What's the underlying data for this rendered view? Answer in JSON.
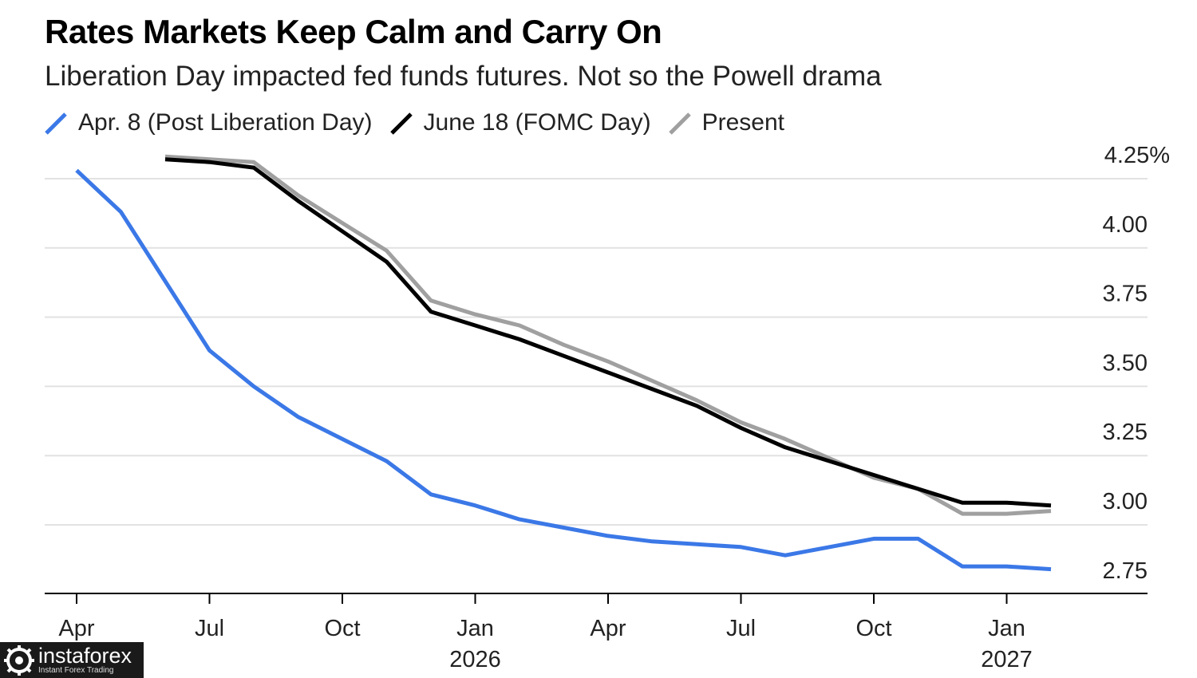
{
  "title": "Rates Markets Keep Calm and Carry On",
  "subtitle": "Liberation Day impacted fed funds futures. Not so the Powell drama",
  "watermark": {
    "name": "instaforex",
    "tagline": "Instant Forex Trading"
  },
  "colors": {
    "apr8": "#3b78e7",
    "june18": "#000000",
    "present": "#a0a0a0",
    "grid": "#e2e2e2",
    "axis": "#000000"
  },
  "chart_data": {
    "type": "line",
    "title": "Rates Markets Keep Calm and Carry On",
    "subtitle": "Liberation Day impacted fed funds futures. Not so the Powell drama",
    "legend_position": "top-left",
    "grid": true,
    "y_unit": "%",
    "ylim": [
      2.75,
      4.25
    ],
    "y_ticks": [
      {
        "value": 4.25,
        "label": "4.25%"
      },
      {
        "value": 4.0,
        "label": "4.00"
      },
      {
        "value": 3.75,
        "label": "3.75"
      },
      {
        "value": 3.5,
        "label": "3.50"
      },
      {
        "value": 3.25,
        "label": "3.25"
      },
      {
        "value": 3.0,
        "label": "3.00"
      },
      {
        "value": 2.75,
        "label": "2.75"
      }
    ],
    "x_ticks": [
      {
        "date": "2025-04",
        "label": "Apr",
        "year": ""
      },
      {
        "date": "2025-07",
        "label": "Jul",
        "year": ""
      },
      {
        "date": "2025-10",
        "label": "Oct",
        "year": ""
      },
      {
        "date": "2026-01",
        "label": "Jan",
        "year": "2026"
      },
      {
        "date": "2026-04",
        "label": "Apr",
        "year": ""
      },
      {
        "date": "2026-07",
        "label": "Jul",
        "year": ""
      },
      {
        "date": "2026-10",
        "label": "Oct",
        "year": ""
      },
      {
        "date": "2027-01",
        "label": "Jan",
        "year": "2027"
      }
    ],
    "series": [
      {
        "name": "Apr. 8 (Post Liberation Day)",
        "color_key": "apr8",
        "points": [
          [
            "2025-04",
            4.28
          ],
          [
            "2025-05",
            4.13
          ],
          [
            "2025-06",
            3.88
          ],
          [
            "2025-07",
            3.63
          ],
          [
            "2025-08",
            3.5
          ],
          [
            "2025-09",
            3.39
          ],
          [
            "2025-10",
            3.31
          ],
          [
            "2025-11",
            3.23
          ],
          [
            "2025-12",
            3.11
          ],
          [
            "2026-01",
            3.07
          ],
          [
            "2026-02",
            3.02
          ],
          [
            "2026-03",
            2.99
          ],
          [
            "2026-04",
            2.96
          ],
          [
            "2026-05",
            2.94
          ],
          [
            "2026-06",
            2.93
          ],
          [
            "2026-07",
            2.92
          ],
          [
            "2026-08",
            2.89
          ],
          [
            "2026-09",
            2.92
          ],
          [
            "2026-10",
            2.95
          ],
          [
            "2026-11",
            2.95
          ],
          [
            "2026-12",
            2.85
          ],
          [
            "2027-01",
            2.85
          ],
          [
            "2027-02",
            2.84
          ]
        ]
      },
      {
        "name": "June 18 (FOMC Day)",
        "color_key": "june18",
        "points": [
          [
            "2025-06",
            4.32
          ],
          [
            "2025-07",
            4.31
          ],
          [
            "2025-08",
            4.29
          ],
          [
            "2025-09",
            4.17
          ],
          [
            "2025-10",
            4.06
          ],
          [
            "2025-11",
            3.95
          ],
          [
            "2025-12",
            3.77
          ],
          [
            "2026-01",
            3.72
          ],
          [
            "2026-02",
            3.67
          ],
          [
            "2026-03",
            3.61
          ],
          [
            "2026-04",
            3.55
          ],
          [
            "2026-05",
            3.49
          ],
          [
            "2026-06",
            3.43
          ],
          [
            "2026-07",
            3.35
          ],
          [
            "2026-08",
            3.28
          ],
          [
            "2026-09",
            3.23
          ],
          [
            "2026-10",
            3.18
          ],
          [
            "2026-11",
            3.13
          ],
          [
            "2026-12",
            3.08
          ],
          [
            "2027-01",
            3.08
          ],
          [
            "2027-02",
            3.07
          ]
        ]
      },
      {
        "name": "Present",
        "color_key": "present",
        "points": [
          [
            "2025-06",
            4.33
          ],
          [
            "2025-07",
            4.32
          ],
          [
            "2025-08",
            4.31
          ],
          [
            "2025-09",
            4.19
          ],
          [
            "2025-10",
            4.09
          ],
          [
            "2025-11",
            3.99
          ],
          [
            "2025-12",
            3.81
          ],
          [
            "2026-01",
            3.76
          ],
          [
            "2026-02",
            3.72
          ],
          [
            "2026-03",
            3.65
          ],
          [
            "2026-04",
            3.59
          ],
          [
            "2026-05",
            3.52
          ],
          [
            "2026-06",
            3.45
          ],
          [
            "2026-07",
            3.37
          ],
          [
            "2026-08",
            3.31
          ],
          [
            "2026-09",
            3.24
          ],
          [
            "2026-10",
            3.17
          ],
          [
            "2026-11",
            3.13
          ],
          [
            "2026-12",
            3.04
          ],
          [
            "2027-01",
            3.04
          ],
          [
            "2027-02",
            3.05
          ]
        ]
      }
    ]
  }
}
